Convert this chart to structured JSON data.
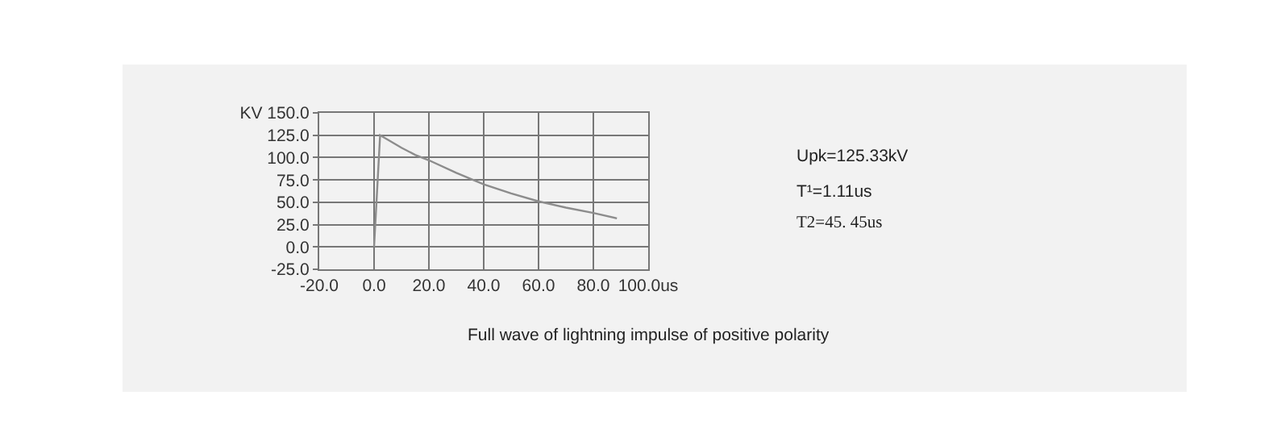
{
  "chart_data": {
    "type": "line",
    "x": [
      0,
      2.2,
      5,
      10,
      15,
      20,
      30,
      40,
      50,
      60,
      70,
      80,
      88.6
    ],
    "series": [
      {
        "color": "#8c8c8c",
        "values": [
          0,
          125,
          120,
          111,
          103,
          97,
          83,
          70,
          60,
          51,
          44,
          38,
          32
        ]
      }
    ],
    "xlim": [
      -20,
      100
    ],
    "ylim": [
      -25,
      150
    ],
    "xticks": [
      {
        "value": -20,
        "label": "-20.0"
      },
      {
        "value": 0,
        "label": "0.0"
      },
      {
        "value": 20,
        "label": "20.0"
      },
      {
        "value": 40,
        "label": "40.0"
      },
      {
        "value": 60,
        "label": "60.0"
      },
      {
        "value": 80,
        "label": "80.0"
      },
      {
        "value": 100,
        "label": "100.0us"
      }
    ],
    "yticks": [
      {
        "value": -25,
        "label": "-25.0"
      },
      {
        "value": 0,
        "label": "0.0"
      },
      {
        "value": 25,
        "label": "25.0"
      },
      {
        "value": 50,
        "label": "50.0"
      },
      {
        "value": 75,
        "label": "75.0"
      },
      {
        "value": 100,
        "label": "100.0"
      },
      {
        "value": 125,
        "label": "125.0"
      },
      {
        "value": 150,
        "label": "KV 150.0"
      }
    ],
    "grid": true,
    "marker": "none",
    "line_style": "solid",
    "annotations": [
      "Upk=125.33kV",
      "T¹=1.11us",
      "T2=45. 45us",
      "Full wave of lightning impulse of positive polarity"
    ]
  }
}
